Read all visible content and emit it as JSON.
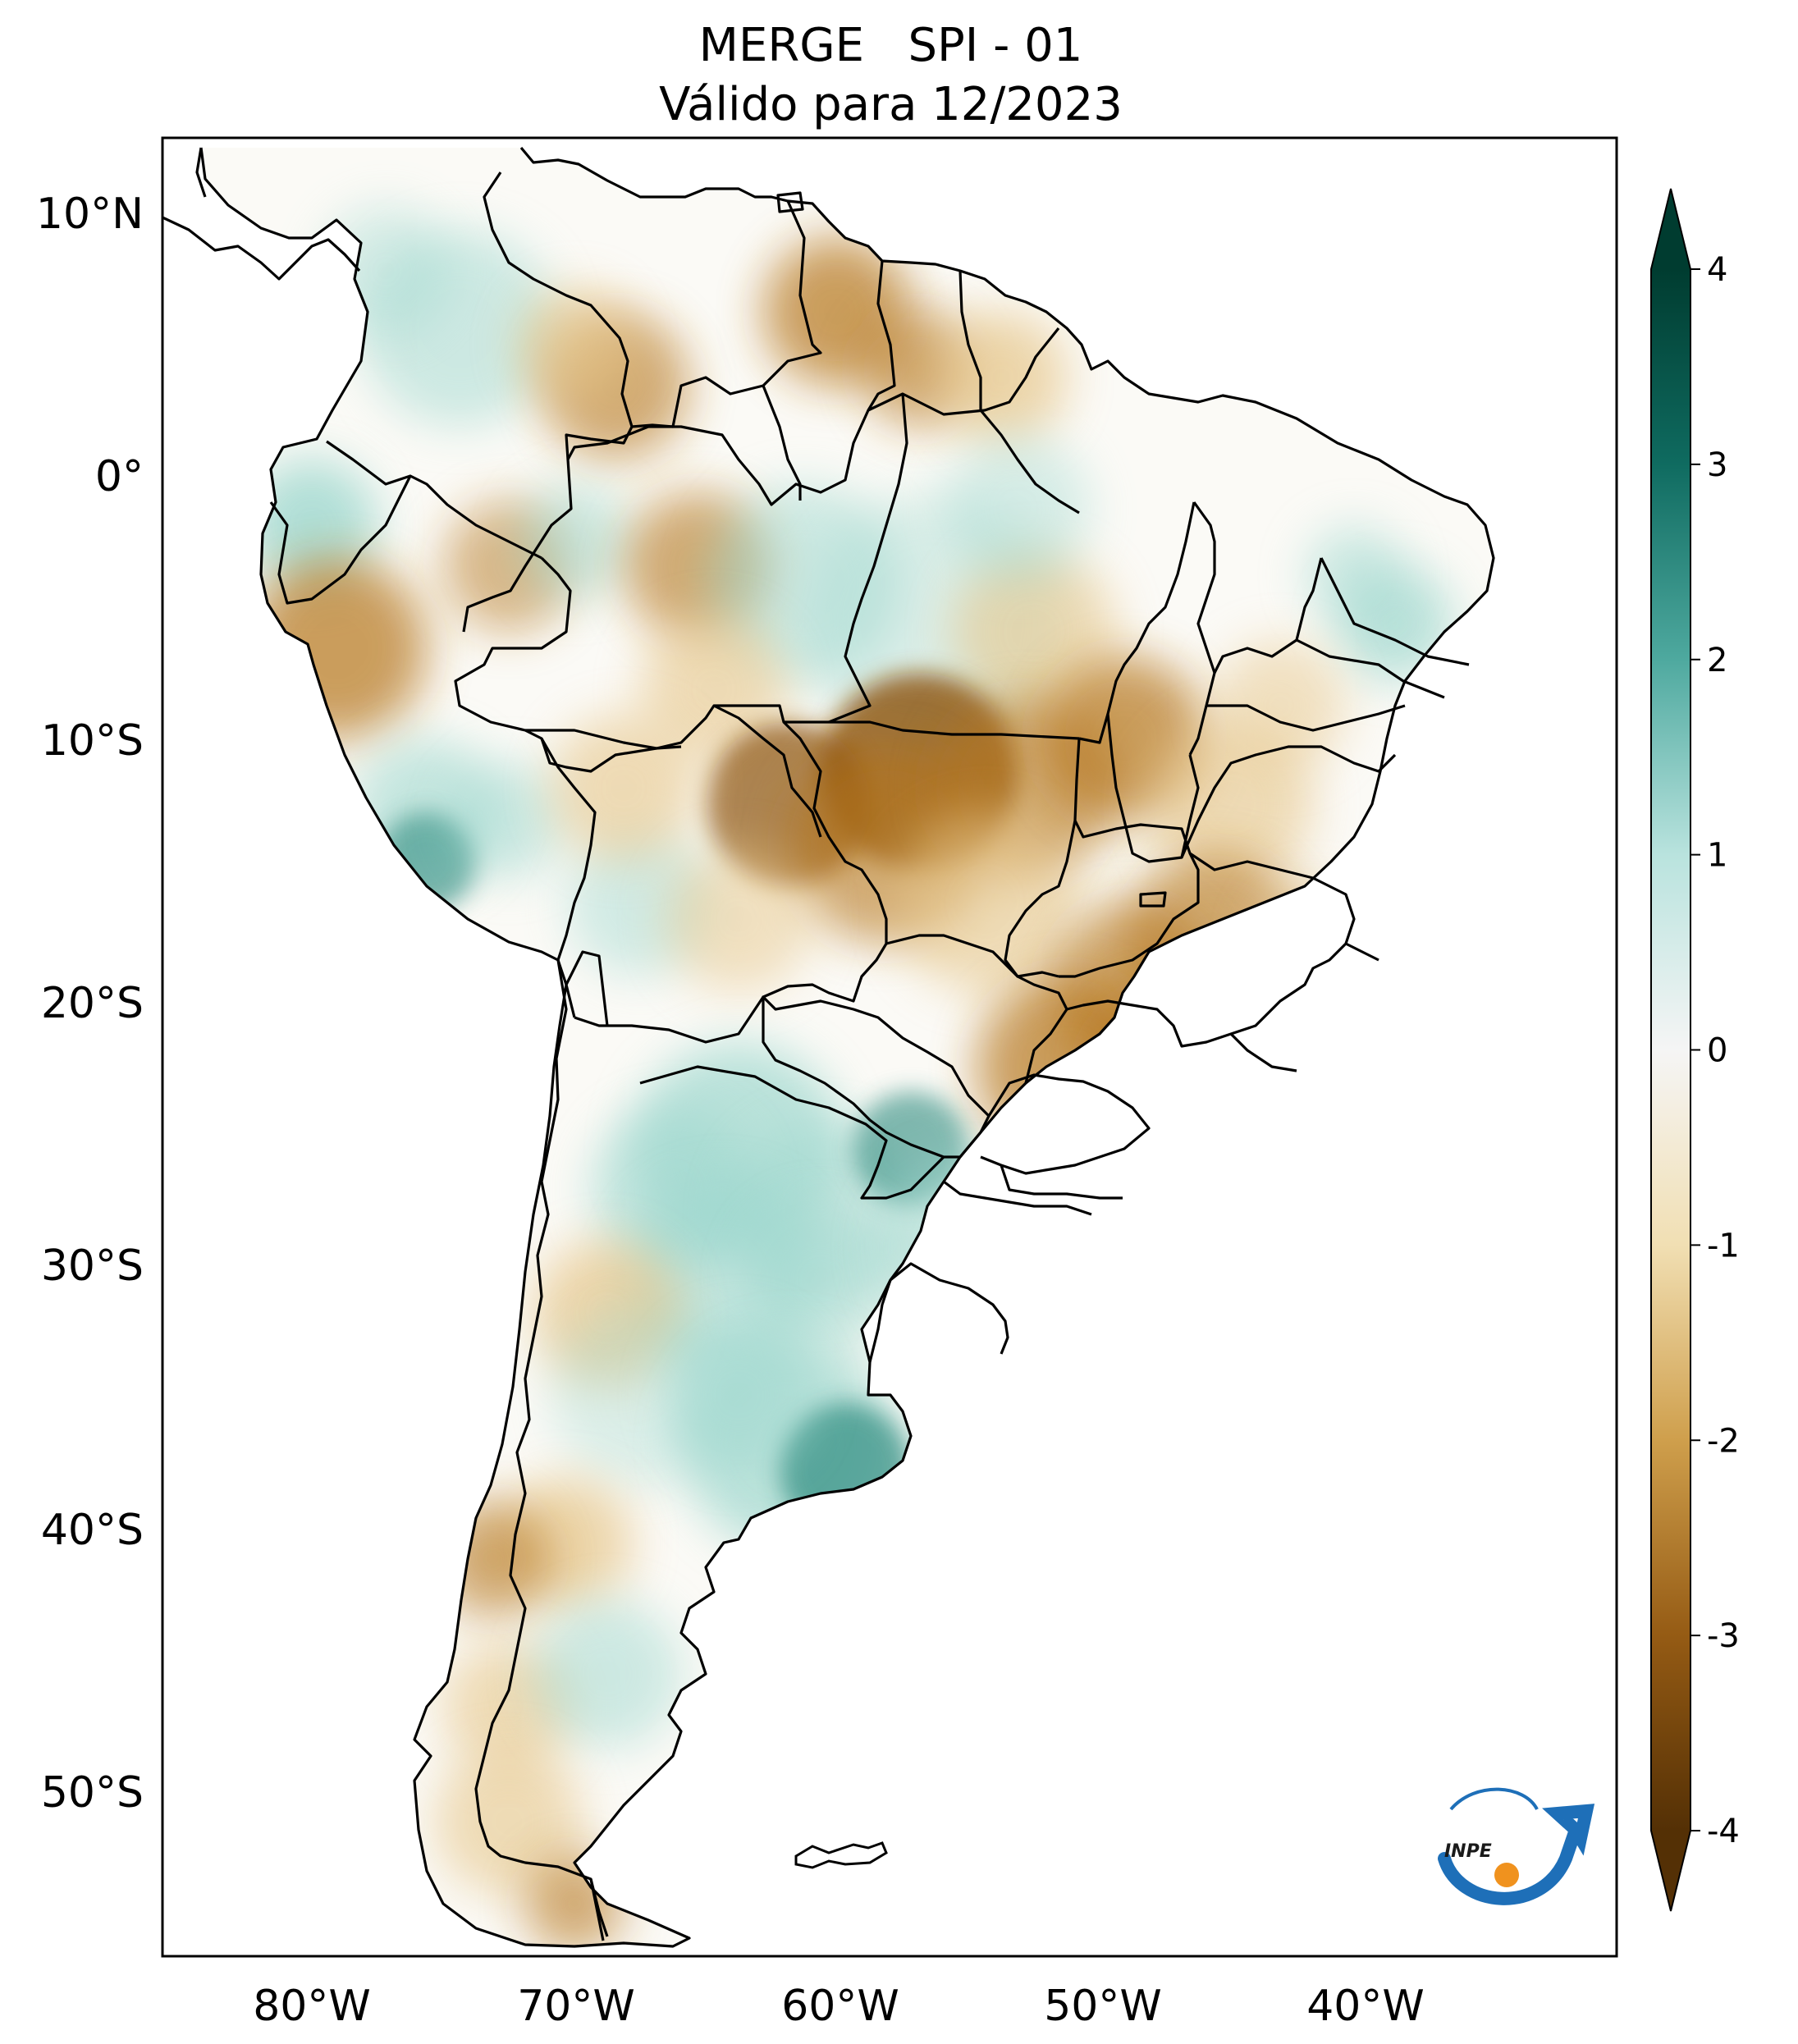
{
  "title_line1": "MERGE   SPI - 01",
  "title_line2": "Válido para 12/2023",
  "lat_labels": [
    "10°N",
    "0°",
    "10°S",
    "20°S",
    "30°S",
    "40°S",
    "50°S"
  ],
  "lon_labels": [
    "80°W",
    "70°W",
    "60°W",
    "50°W",
    "40°W"
  ],
  "colorbar": {
    "ticks": [
      "4",
      "3",
      "2",
      "1",
      "0",
      "-1",
      "-2",
      "-3",
      "-4"
    ],
    "colors": {
      "4": "#003c30",
      "3": "#0f6b60",
      "2": "#4ea99f",
      "1": "#b9e3de",
      "0": "#f5f5f5",
      "-1": "#f1dfb3",
      "-2": "#cf9f4c",
      "-3": "#955b14",
      "-4": "#543005"
    }
  },
  "logo": {
    "text": "INPE",
    "orbit_color": "#1e6fb8",
    "sun_color": "#f0921e"
  },
  "palette": {
    "dry": "#b5761f",
    "dry_strong": "#8c5210",
    "dry_light": "#e6c68a",
    "wet": "#9fd8cf",
    "wet_strong": "#2d8c80",
    "neutral": "#fbfaf6",
    "border": "#000000"
  }
}
